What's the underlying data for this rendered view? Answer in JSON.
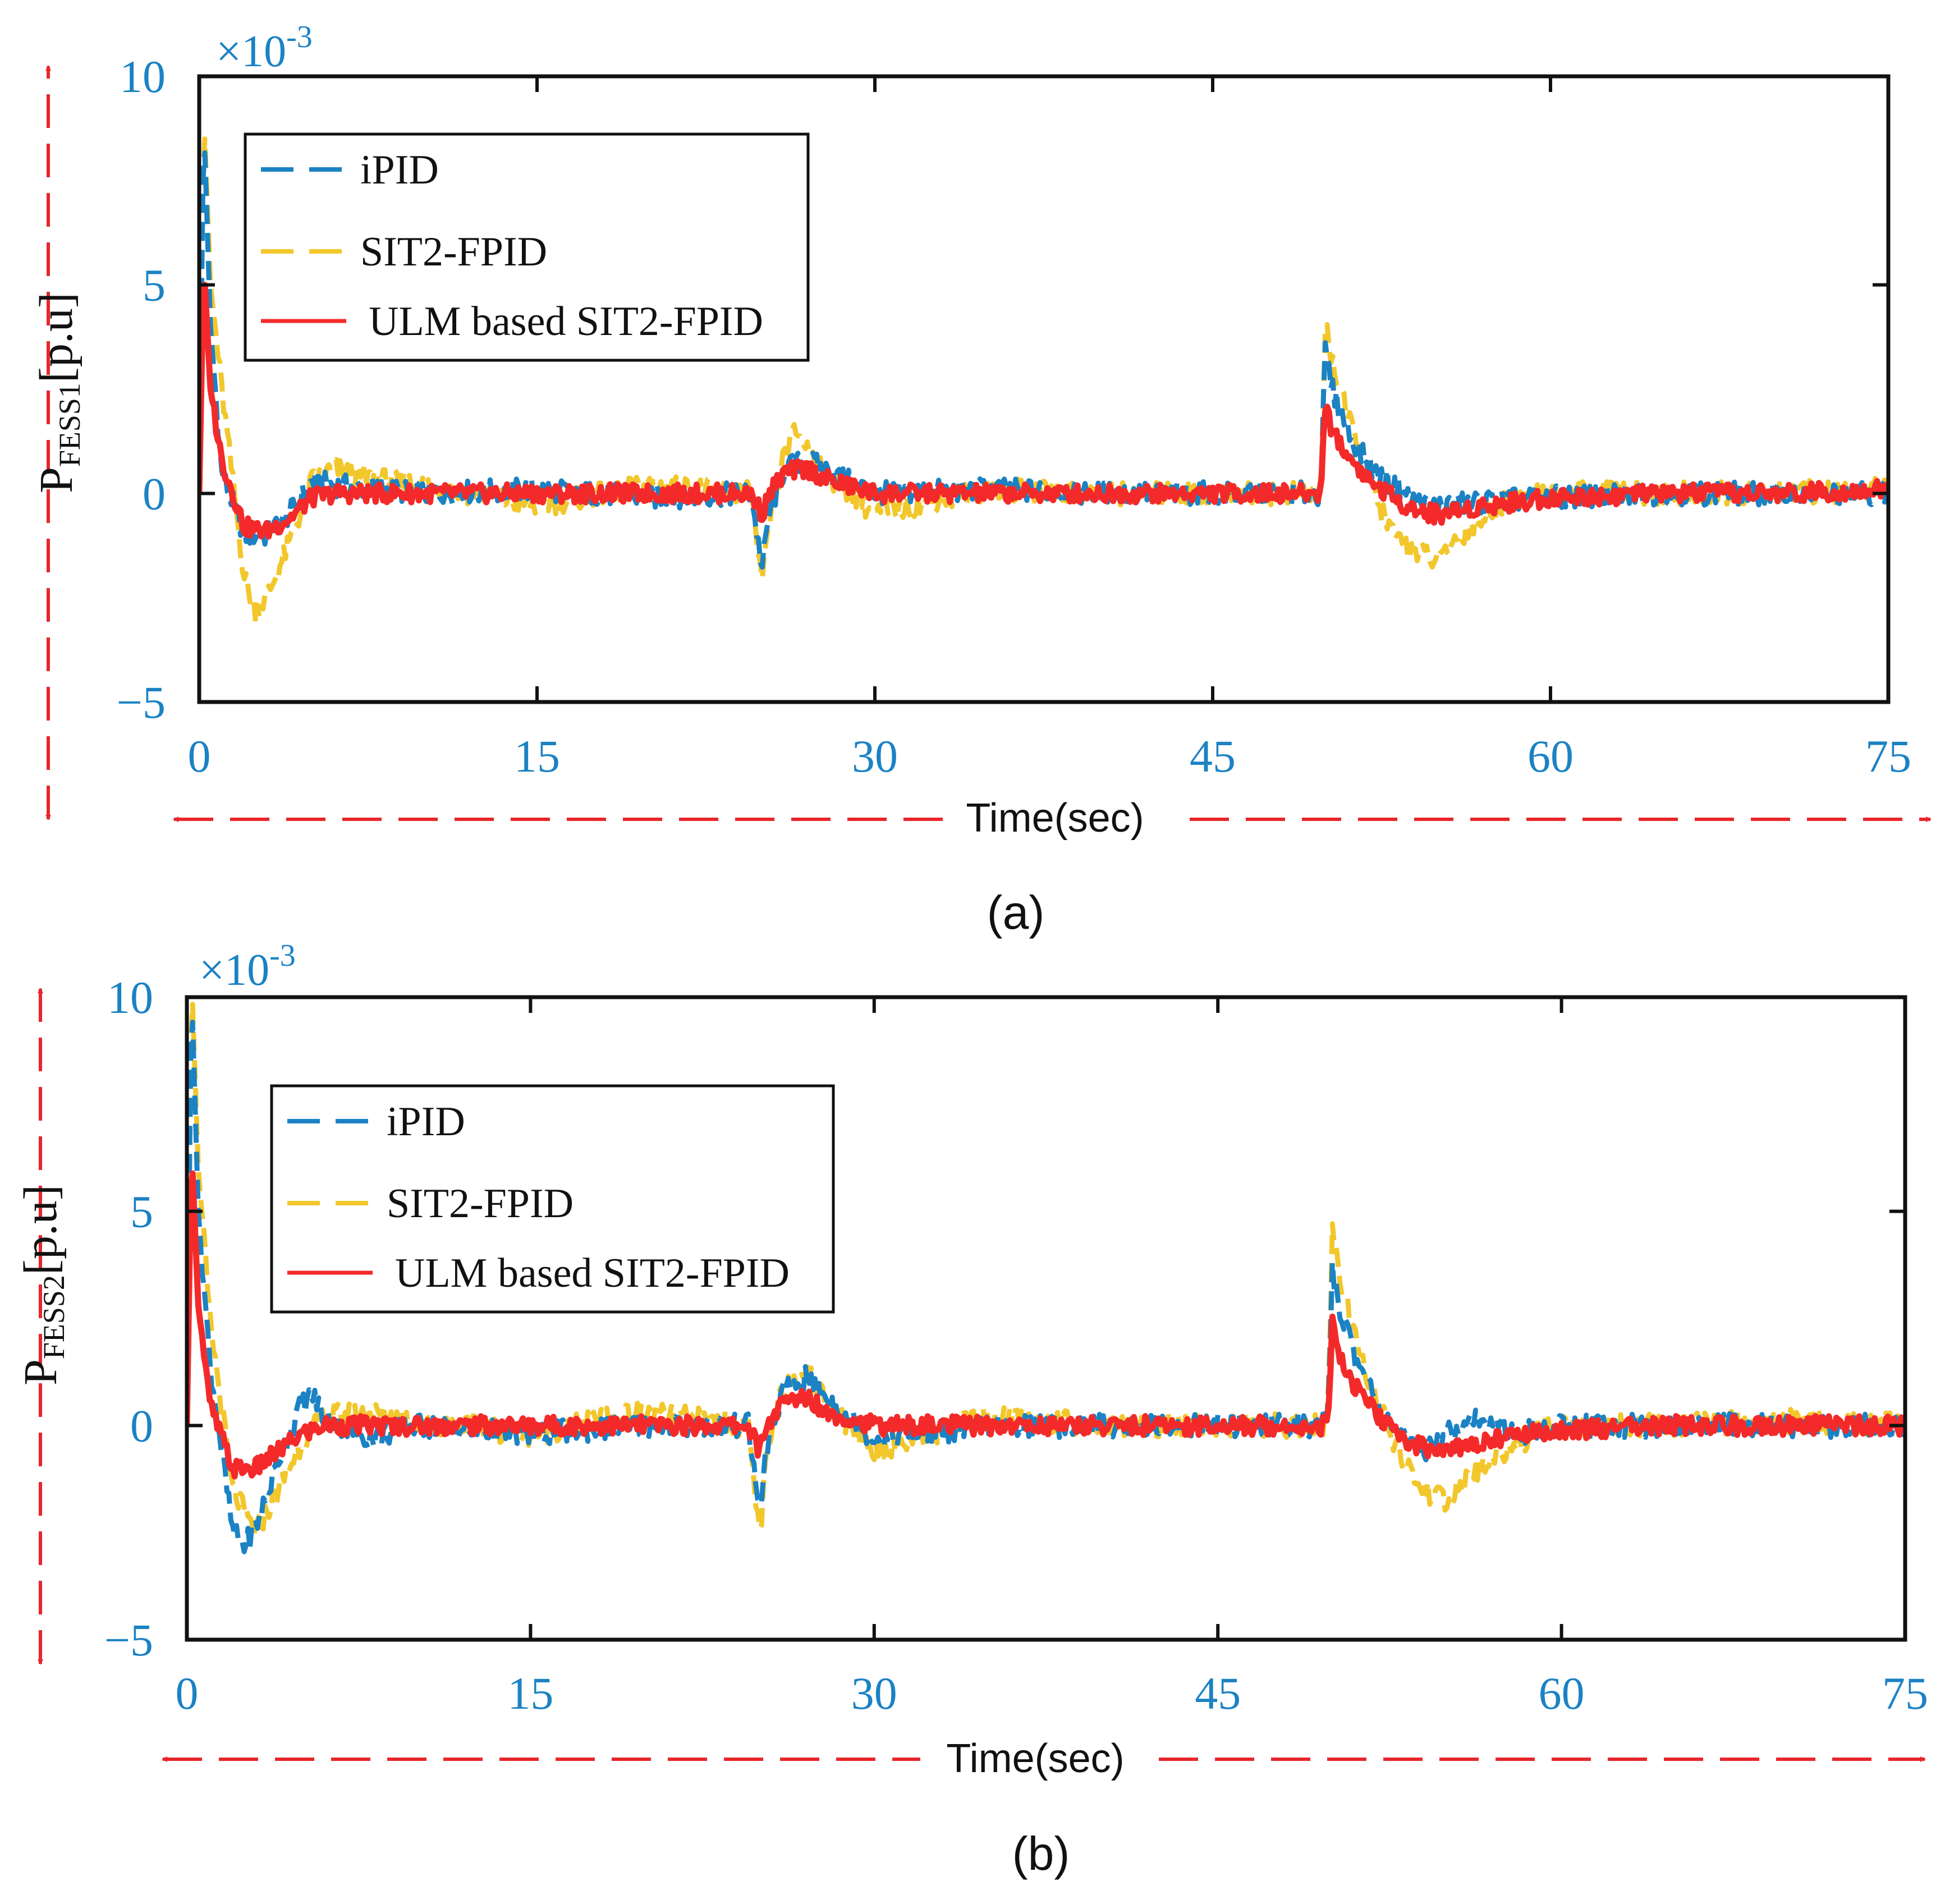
{
  "colors": {
    "ipid": "#1b82c4",
    "sit2": "#f2c72c",
    "ulm": "#f42a2a",
    "tick": "#1b82c4",
    "arrow": "#e8262b",
    "frame": "#111111"
  },
  "chart_data": [
    {
      "type": "line",
      "panel": "a",
      "caption": "(a)",
      "multiplier_base": "×10",
      "multiplier_exp": "-3",
      "xlabel": "Time(sec)",
      "ylabel_main": "P",
      "ylabel_sub": "FESS1",
      "ylabel_unit": "[p.u]",
      "xlim": [
        0,
        75
      ],
      "ylim": [
        -5,
        10
      ],
      "xticks": [
        0,
        15,
        30,
        45,
        60,
        75
      ],
      "xtick_labels": [
        "0",
        "15",
        "30",
        "45",
        "60",
        "75"
      ],
      "yticks": [
        -5,
        0,
        5,
        10
      ],
      "ytick_labels": [
        "−5",
        "0",
        "5",
        "10"
      ],
      "legend_position": "top-left",
      "series": [
        {
          "name": "iPID",
          "style": "dashed",
          "color": "#1b82c4",
          "x": [
            0,
            0.2,
            0.5,
            1,
            2,
            3,
            4,
            5,
            6,
            8,
            10,
            15,
            20,
            24.5,
            25,
            25.3,
            26,
            27,
            28,
            30,
            35,
            40,
            45,
            49.8,
            50,
            50.3,
            51,
            52,
            53,
            54,
            55,
            57,
            60,
            65,
            70,
            75
          ],
          "y": [
            0,
            9.0,
            4.0,
            0.5,
            -1.0,
            -1.0,
            -0.5,
            0.3,
            0.2,
            0.1,
            0,
            0.1,
            -0.1,
            0,
            -1.8,
            -0.5,
            0.6,
            0.8,
            0.5,
            0,
            0.1,
            0,
            0,
            0,
            3.4,
            2.5,
            1.5,
            0.6,
            0.2,
            -0.2,
            -0.3,
            -0.2,
            -0.1,
            0,
            0,
            0
          ]
        },
        {
          "name": "SIT2-FPID",
          "style": "dashed",
          "color": "#f2c72c",
          "x": [
            0,
            0.2,
            0.5,
            1,
            2,
            2.5,
            3,
            4,
            5,
            6,
            7,
            10,
            15,
            20,
            24.5,
            25,
            25.3,
            26,
            26.5,
            27,
            28,
            30,
            35,
            40,
            45,
            49.8,
            50,
            50.3,
            51,
            52,
            53,
            54,
            55,
            56,
            58,
            60,
            65,
            70,
            75
          ],
          "y": [
            0,
            9.2,
            5.0,
            2.5,
            -2.0,
            -2.8,
            -2.5,
            -1.2,
            0.3,
            0.6,
            0.4,
            0.2,
            -0.3,
            0.2,
            0,
            -2.2,
            -0.8,
            1.0,
            1.5,
            1.1,
            0.4,
            -0.5,
            0.1,
            0,
            0,
            0,
            4.1,
            3.2,
            1.8,
            0.2,
            -1.0,
            -1.4,
            -1.6,
            -1.0,
            -0.2,
            0,
            0,
            0,
            0.1
          ]
        },
        {
          "name": "ULM based SIT2-FPID",
          "style": "solid",
          "color": "#f42a2a",
          "x": [
            0,
            0.2,
            0.5,
            1,
            2,
            3,
            4,
            5,
            6,
            8,
            10,
            15,
            20,
            24.5,
            25,
            25.3,
            26,
            27,
            28,
            30,
            35,
            40,
            45,
            49.8,
            50,
            50.3,
            51,
            52,
            53,
            54,
            55,
            57,
            60,
            65,
            70,
            75
          ],
          "y": [
            0,
            5.5,
            2.5,
            0.8,
            -0.8,
            -0.9,
            -0.6,
            -0.1,
            0,
            0,
            0,
            0,
            0,
            0,
            -0.5,
            0,
            0.5,
            0.6,
            0.3,
            0,
            0,
            0,
            0,
            0,
            2.2,
            1.5,
            0.9,
            0.3,
            -0.1,
            -0.4,
            -0.5,
            -0.3,
            -0.1,
            0,
            0,
            0.1
          ]
        }
      ]
    },
    {
      "type": "line",
      "panel": "b",
      "caption": "(b)",
      "multiplier_base": "×10",
      "multiplier_exp": "-3",
      "xlabel": "Time(sec)",
      "ylabel_main": "P",
      "ylabel_sub": "FESS2",
      "ylabel_unit": "[p.u]",
      "xlim": [
        0,
        75
      ],
      "ylim": [
        -5,
        10
      ],
      "xticks": [
        0,
        15,
        30,
        45,
        60,
        75
      ],
      "xtick_labels": [
        "0",
        "15",
        "30",
        "45",
        "60",
        "75"
      ],
      "yticks": [
        -5,
        0,
        5,
        10
      ],
      "ytick_labels": [
        "−5",
        "0",
        "5",
        "10"
      ],
      "legend_position": "top-left",
      "series": [
        {
          "name": "iPID",
          "style": "dashed",
          "color": "#1b82c4",
          "x": [
            0,
            0.2,
            0.5,
            1,
            2,
            2.5,
            3,
            4,
            5,
            5.5,
            6,
            8,
            10,
            15,
            20,
            24.5,
            25,
            25.3,
            26,
            27,
            28,
            30,
            35,
            40,
            45,
            49.8,
            50,
            50.3,
            51,
            52,
            53,
            54,
            55,
            56,
            58,
            60,
            65,
            70,
            75
          ],
          "y": [
            0,
            10.3,
            5.0,
            1.5,
            -2.5,
            -2.8,
            -2.4,
            -0.8,
            0.5,
            0.7,
            0.2,
            -0.3,
            0,
            -0.2,
            0,
            0,
            -2.0,
            -0.6,
            0.8,
            1.1,
            0.6,
            -0.3,
            0,
            0,
            0,
            0,
            3.6,
            2.8,
            1.6,
            0.5,
            -0.3,
            -0.6,
            -0.2,
            0.2,
            -0.2,
            0,
            0,
            0,
            0
          ]
        },
        {
          "name": "SIT2-FPID",
          "style": "dashed",
          "color": "#f2c72c",
          "x": [
            0,
            0.2,
            0.5,
            1,
            2,
            3,
            4,
            5,
            6,
            8,
            10,
            15,
            20,
            24.5,
            25,
            25.3,
            26,
            27,
            28,
            30,
            35,
            40,
            45,
            49.8,
            50,
            50.3,
            51,
            52,
            53,
            54,
            55,
            56,
            58,
            60,
            65,
            70,
            75
          ],
          "y": [
            0,
            10.6,
            6.0,
            2.5,
            -1.5,
            -2.5,
            -1.5,
            -0.4,
            0.2,
            0.3,
            0.1,
            -0.2,
            0.3,
            0,
            -2.6,
            -0.8,
            0.9,
            1.3,
            0.5,
            -0.6,
            0.2,
            0,
            0,
            0,
            4.5,
            3.5,
            2.0,
            0.5,
            -0.8,
            -1.5,
            -1.8,
            -1.2,
            -0.4,
            0,
            0,
            0.1,
            0
          ]
        },
        {
          "name": "ULM based SIT2-FPID",
          "style": "solid",
          "color": "#f42a2a",
          "x": [
            0,
            0.2,
            0.5,
            1,
            2,
            3,
            4,
            5,
            6,
            8,
            10,
            15,
            20,
            24.5,
            25,
            25.3,
            26,
            27,
            28,
            30,
            35,
            40,
            45,
            49.8,
            50,
            50.3,
            51,
            52,
            53,
            54,
            55,
            57,
            60,
            65,
            70,
            75
          ],
          "y": [
            0,
            6.5,
            2.8,
            0.5,
            -1.0,
            -1.0,
            -0.6,
            -0.2,
            0,
            0,
            0,
            0,
            0,
            0,
            -0.6,
            0,
            0.5,
            0.7,
            0.3,
            0,
            0,
            0,
            0,
            0,
            2.4,
            1.6,
            0.9,
            0.2,
            -0.3,
            -0.5,
            -0.6,
            -0.3,
            -0.1,
            0,
            0,
            0
          ]
        }
      ]
    }
  ]
}
